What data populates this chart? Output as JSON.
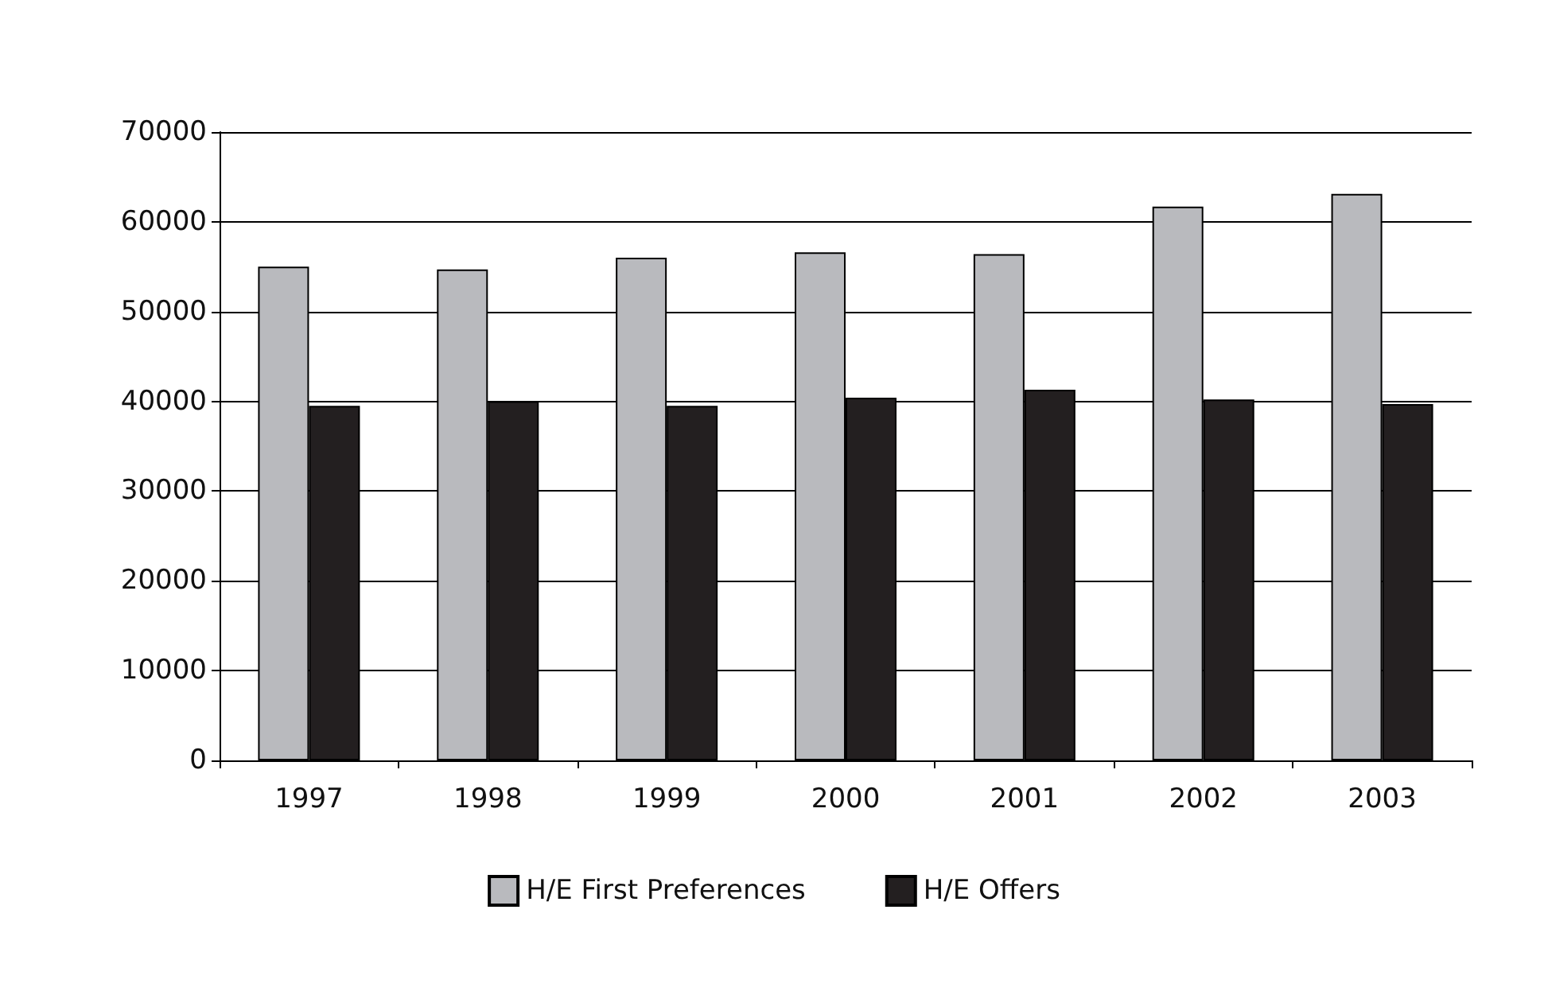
{
  "chart_data": {
    "type": "bar",
    "categories": [
      "1997",
      "1998",
      "1999",
      "2000",
      "2001",
      "2002",
      "2003"
    ],
    "series": [
      {
        "name": "H/E First Preferences",
        "color": "#b9babe",
        "values": [
          55000,
          54700,
          56000,
          56600,
          56400,
          61700,
          63100
        ]
      },
      {
        "name": "H/E Offers",
        "color": "#231f20",
        "values": [
          39500,
          40000,
          39500,
          40400,
          41300,
          40200,
          39700
        ]
      }
    ],
    "ylim": [
      0,
      70000
    ],
    "yticks": [
      0,
      10000,
      20000,
      30000,
      40000,
      50000,
      60000,
      70000
    ],
    "grid": "y",
    "legend": "bottom"
  }
}
